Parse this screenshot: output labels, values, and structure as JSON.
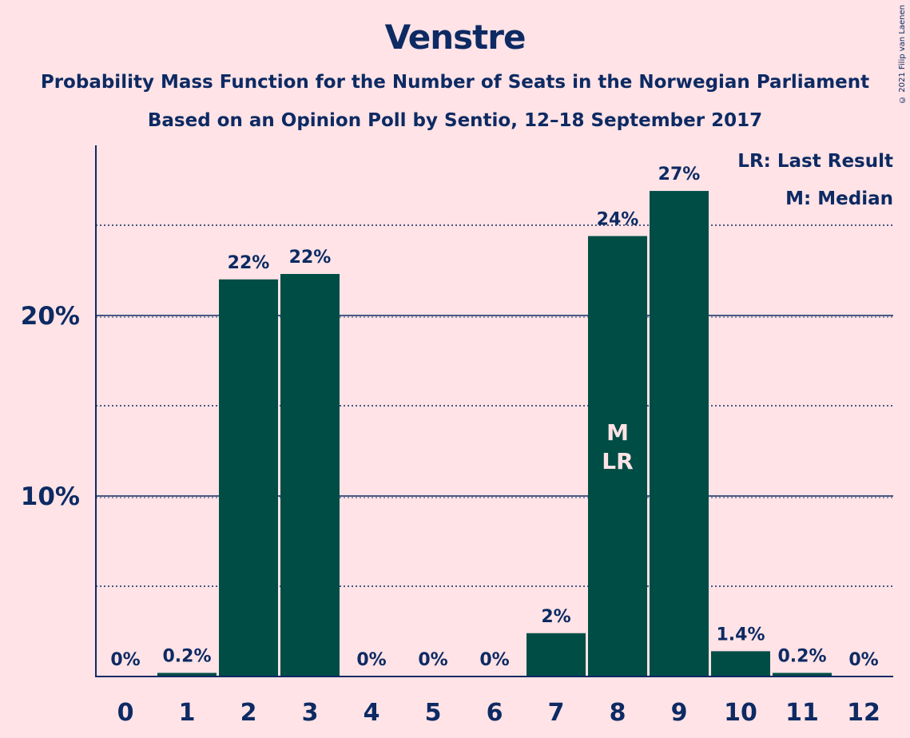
{
  "copyright": "© 2021 Filip van Laenen",
  "chart_data": {
    "type": "bar",
    "title": "Venstre",
    "subtitle": "Probability Mass Function for the Number of Seats in the Norwegian Parliament",
    "subtitle2": "Based on an Opinion Poll by Sentio, 12–18 September 2017",
    "xlabel": "",
    "ylabel": "",
    "categories": [
      "0",
      "1",
      "2",
      "3",
      "4",
      "5",
      "6",
      "7",
      "8",
      "9",
      "10",
      "11",
      "12"
    ],
    "values": [
      0,
      0.2,
      22.0,
      22.3,
      0,
      0,
      0,
      2.4,
      24.4,
      26.9,
      1.4,
      0.2,
      0
    ],
    "data_labels": [
      "0%",
      "0.2%",
      "22%",
      "22%",
      "0%",
      "0%",
      "0%",
      "2%",
      "24%",
      "27%",
      "1.4%",
      "0.2%",
      "0%"
    ],
    "ylim": [
      0,
      29.5
    ],
    "yticks": [
      10,
      20
    ],
    "ytick_labels": [
      "10%",
      "20%"
    ],
    "minor_gridlines": [
      5,
      15,
      25
    ],
    "bar_color": "#004D46",
    "background_color": "#FFE3E6",
    "text_color": "#0D2A63",
    "markers": [
      {
        "category": "8",
        "lines": [
          "M",
          "LR"
        ]
      }
    ],
    "legend": {
      "placement": "top-right",
      "items": [
        "LR: Last Result",
        "M: Median"
      ]
    }
  }
}
